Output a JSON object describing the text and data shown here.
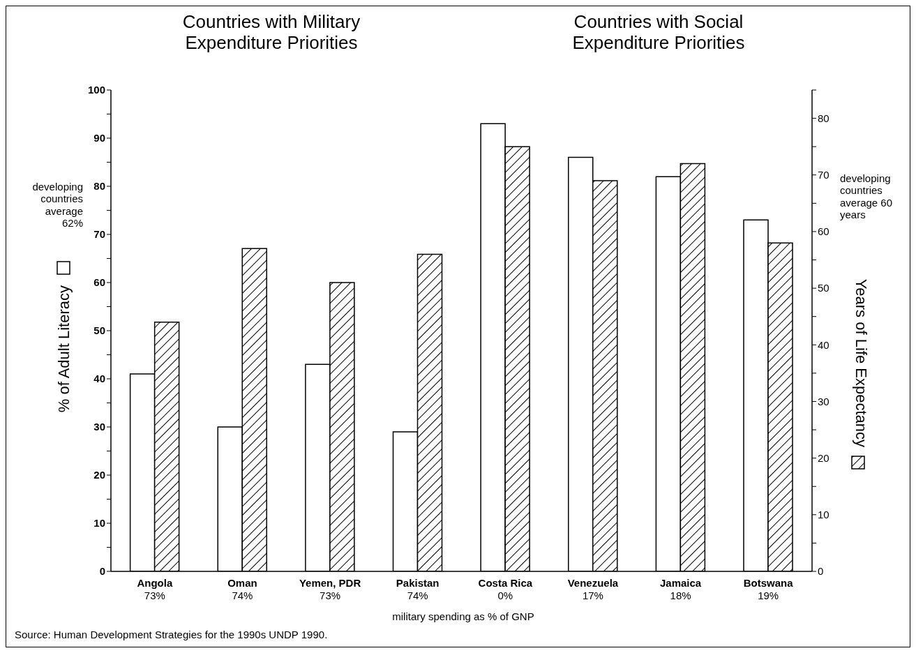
{
  "chart_data": {
    "type": "bar",
    "categories": [
      "Angola\n73%",
      "Oman\n74%",
      "Yemen, PDR\n73%",
      "Pakistan\n74%",
      "Costa Rica\n0%",
      "Venezuela\n17%",
      "Jamaica\n18%",
      "Botswana\n19%"
    ],
    "series": [
      {
        "color": "#ffffff",
        "values": [
          41,
          30,
          43,
          29,
          93,
          86,
          82,
          73
        ]
      },
      {
        "color": "#000000",
        "axis": "y2",
        "values": [
          44,
          57,
          51,
          56,
          75,
          69,
          72,
          58
        ]
      }
    ],
    "ylabel": "% of Adult Literacy",
    "y2label": "Years of Life Expectancy",
    "ylim": [
      0,
      100
    ],
    "yticks": [
      0,
      {
        "value": 5,
        "label": null
      },
      10,
      {
        "value": 15,
        "label": null
      },
      20,
      {
        "value": 25,
        "label": null
      },
      30,
      {
        "value": 35,
        "label": null
      },
      40,
      {
        "value": 45,
        "label": null
      },
      50,
      {
        "value": 55,
        "label": null
      },
      60,
      {
        "value": 65,
        "label": null
      },
      70,
      {
        "value": 75,
        "label": null
      },
      80,
      {
        "value": 85,
        "label": null
      },
      90,
      {
        "value": 95,
        "label": null
      },
      100
    ],
    "y2lim": [
      0,
      85
    ],
    "y2ticks": [
      0,
      {
        "value": 5,
        "label": null
      },
      10,
      {
        "value": 15,
        "label": null
      },
      20,
      {
        "value": 25,
        "label": null
      },
      30,
      {
        "value": 35,
        "label": null
      },
      40,
      {
        "value": 45,
        "label": null
      },
      50,
      {
        "value": 55,
        "label": null
      },
      60,
      {
        "value": 65,
        "label": null
      },
      70,
      {
        "value": 75,
        "label": null
      },
      80,
      {
        "value": 85,
        "label": null
      }
    ],
    "annotations": [
      "Countries with Military Expenditure Priorities",
      "Countries with Social Expenditure Priorities",
      "developing countries average 62%",
      "developing countries average 60 years",
      "military spending as % of GNP",
      "Source: Human Development Strategies for the 1990s UNDP 1990."
    ],
    "grid": false,
    "legend": false
  }
}
